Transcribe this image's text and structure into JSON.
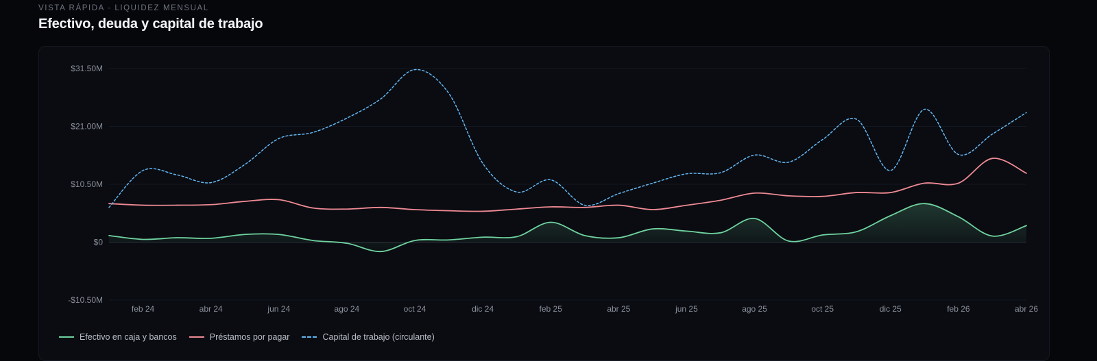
{
  "header": {
    "eyebrow": "VISTA RÁPIDA · LIQUIDEZ MENSUAL",
    "title": "Efectivo, deuda y capital de trabajo"
  },
  "chart_data": {
    "type": "line",
    "title": "Efectivo, deuda y capital de trabajo",
    "ylim": [
      -10.5,
      31.5
    ],
    "y_ticks": [
      31.5,
      21.0,
      10.5,
      0,
      -10.5
    ],
    "y_tick_labels": [
      "$31.50M",
      "$21.00M",
      "$10.50M",
      "$0",
      "-$10.50M"
    ],
    "x": [
      "ene 24",
      "feb 24",
      "mar 24",
      "abr 24",
      "may 24",
      "jun 24",
      "jul 24",
      "ago 24",
      "sep 24",
      "oct 24",
      "nov 24",
      "dic 24",
      "ene 25",
      "feb 25",
      "mar 25",
      "abr 25",
      "may 25",
      "jun 25",
      "jul 25",
      "ago 25",
      "sep 25",
      "oct 25",
      "nov 25",
      "dic 25",
      "ene 26",
      "feb 26",
      "mar 26",
      "abr 26"
    ],
    "x_tick_labels": [
      "feb 24",
      "abr 24",
      "jun 24",
      "ago 24",
      "oct 24",
      "dic 24",
      "feb 25",
      "abr 25",
      "jun 25",
      "ago 25",
      "oct 25",
      "dic 25",
      "feb 26",
      "abr 26"
    ],
    "grid": true,
    "legend_position": "bottom-left",
    "series": [
      {
        "name": "Efectivo en caja y bancos",
        "color": "#6fd3a0",
        "style": "solid",
        "fill": true,
        "values": [
          1.2,
          0.5,
          0.8,
          0.7,
          1.4,
          1.4,
          0.3,
          -0.2,
          -1.7,
          0.3,
          0.4,
          0.9,
          1.0,
          3.6,
          1.2,
          0.8,
          2.4,
          2.0,
          1.7,
          4.3,
          0.2,
          1.3,
          1.9,
          4.8,
          7.0,
          4.6,
          1.1,
          3.0
        ]
      },
      {
        "name": "Préstamos por pagar",
        "color": "#ef8a94",
        "style": "solid",
        "fill": false,
        "values": [
          7.0,
          6.7,
          6.7,
          6.8,
          7.4,
          7.7,
          6.2,
          6.0,
          6.3,
          5.9,
          5.7,
          5.6,
          6.0,
          6.4,
          6.3,
          6.7,
          5.9,
          6.7,
          7.6,
          8.9,
          8.4,
          8.3,
          9.0,
          9.0,
          10.7,
          10.7,
          15.2,
          12.5
        ]
      },
      {
        "name": "Capital de trabajo (circulante)",
        "color": "#63b6f2",
        "style": "dashed",
        "fill": false,
        "values": [
          6.3,
          13.0,
          12.2,
          10.8,
          14.1,
          18.8,
          19.9,
          22.5,
          26.0,
          31.3,
          27.0,
          14.3,
          9.1,
          11.3,
          6.7,
          8.8,
          10.7,
          12.4,
          12.6,
          15.8,
          14.5,
          18.6,
          22.3,
          13.0,
          24.1,
          15.9,
          19.6,
          23.5
        ]
      }
    ]
  }
}
